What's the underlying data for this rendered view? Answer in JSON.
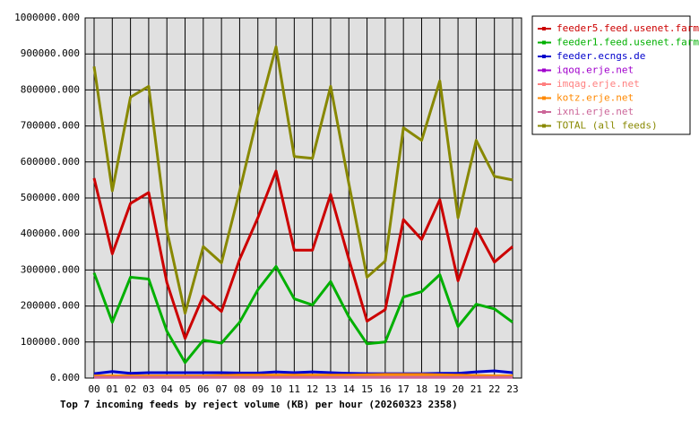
{
  "chart_data": {
    "type": "line",
    "title": "Top 7 incoming feeds by reject volume (KB) per hour (20260323 2358)",
    "categories": [
      "00",
      "01",
      "02",
      "03",
      "04",
      "05",
      "06",
      "07",
      "08",
      "09",
      "10",
      "11",
      "12",
      "13",
      "14",
      "15",
      "16",
      "17",
      "18",
      "19",
      "20",
      "21",
      "22",
      "23"
    ],
    "series": [
      {
        "name": "feeder5.feed.usenet.farm",
        "color": "#cc0000",
        "values": [
          555000,
          345000,
          485000,
          515000,
          265000,
          110000,
          228000,
          185000,
          330000,
          445000,
          575000,
          355000,
          355000,
          510000,
          330000,
          158000,
          190000,
          440000,
          385000,
          495000,
          270000,
          415000,
          322000,
          365000
        ]
      },
      {
        "name": "feeder1.feed.usenet.farm",
        "color": "#00b000",
        "values": [
          292000,
          155000,
          280000,
          275000,
          130000,
          43000,
          105000,
          97000,
          155000,
          245000,
          310000,
          220000,
          203000,
          268000,
          170000,
          95000,
          100000,
          225000,
          240000,
          287000,
          143000,
          205000,
          192000,
          155000
        ]
      },
      {
        "name": "feeder.ecngs.de",
        "color": "#0000cc",
        "values": [
          12000,
          18000,
          13000,
          15000,
          15000,
          15000,
          15000,
          15000,
          14000,
          14000,
          17000,
          15000,
          17000,
          15000,
          13000,
          12000,
          12000,
          12000,
          12000,
          13000,
          13000,
          17000,
          20000,
          15000
        ]
      },
      {
        "name": "iqoq.erje.net",
        "color": "#a000cc",
        "values": [
          3000,
          3000,
          3000,
          3000,
          3000,
          3000,
          3000,
          3000,
          3000,
          3000,
          3000,
          3000,
          3000,
          3000,
          3000,
          3000,
          3000,
          3000,
          3000,
          3000,
          3000,
          3000,
          3000,
          3000
        ]
      },
      {
        "name": "imqag.erje.net",
        "color": "#ff8080",
        "values": [
          5000,
          5000,
          5000,
          5000,
          5000,
          5000,
          5000,
          5000,
          5000,
          5000,
          5000,
          5000,
          5000,
          5000,
          5000,
          5000,
          5000,
          5000,
          5000,
          5000,
          5000,
          5000,
          5000,
          5000
        ]
      },
      {
        "name": "kotz.erje.net",
        "color": "#ff8800",
        "values": [
          6000,
          6000,
          6000,
          6000,
          6000,
          6000,
          6000,
          7000,
          8000,
          8000,
          8000,
          8000,
          8000,
          8000,
          8000,
          9000,
          10000,
          10000,
          10000,
          9000,
          8000,
          7000,
          6000,
          6000
        ]
      },
      {
        "name": "ixni.erje.net",
        "color": "#cc6699",
        "values": [
          2000,
          2000,
          2000,
          2000,
          2000,
          2000,
          2000,
          2000,
          2000,
          2000,
          2000,
          2000,
          2000,
          2000,
          2000,
          2000,
          2000,
          2000,
          2000,
          2000,
          2000,
          2000,
          2000,
          2000
        ]
      },
      {
        "name": "TOTAL (all feeds)",
        "color": "#888800",
        "values": [
          865000,
          520000,
          780000,
          810000,
          410000,
          180000,
          365000,
          320000,
          520000,
          730000,
          920000,
          615000,
          610000,
          810000,
          540000,
          280000,
          325000,
          695000,
          660000,
          825000,
          445000,
          660000,
          560000,
          550000
        ]
      }
    ],
    "ylim": [
      0,
      1000000
    ],
    "yticks": [
      {
        "value": 0,
        "label": "0.000"
      },
      {
        "value": 100000,
        "label": "100000.000"
      },
      {
        "value": 200000,
        "label": "200000.000"
      },
      {
        "value": 300000,
        "label": "300000.000"
      },
      {
        "value": 400000,
        "label": "400000.000"
      },
      {
        "value": 500000,
        "label": "500000.000"
      },
      {
        "value": 600000,
        "label": "600000.000"
      },
      {
        "value": 700000,
        "label": "700000.000"
      },
      {
        "value": 800000,
        "label": "800000.000"
      },
      {
        "value": 900000,
        "label": "900000.000"
      },
      {
        "value": 1000000,
        "label": "1000000.000"
      }
    ],
    "grid": true
  }
}
